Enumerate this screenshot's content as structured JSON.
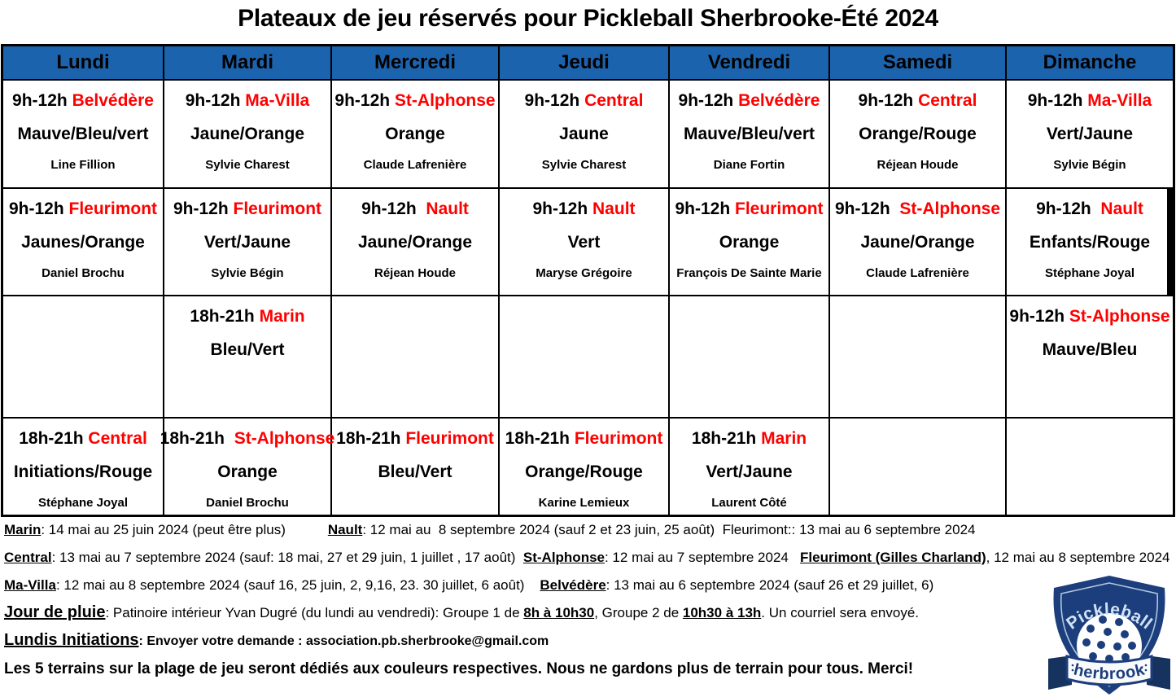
{
  "title": "Plateaux de jeu réservés pour Pickleball Sherbrooke-Été 2024",
  "colors": {
    "header_bg": "#1c63ae",
    "location_red": "#ff0000",
    "text_black": "#000000",
    "logo_navy": "#1d3e7c"
  },
  "days": [
    "Lundi",
    "Mardi",
    "Mercredi",
    "Jeudi",
    "Vendredi",
    "Samedi",
    "Dimanche"
  ],
  "schedule_rows": [
    [
      {
        "time": "9h-12h",
        "location": "Belvédère",
        "colors": "Mauve/Bleu/vert",
        "name": "Line Fillion"
      },
      {
        "time": "9h-12h",
        "location": "Ma-Villa",
        "colors": "Jaune/Orange",
        "name": "Sylvie Charest"
      },
      {
        "time": "9h-12h",
        "location": "St-Alphonse",
        "colors": "Orange",
        "name": "Claude Lafrenière"
      },
      {
        "time": "9h-12h",
        "location": "Central",
        "colors": "Jaune",
        "name": "Sylvie Charest"
      },
      {
        "time": "9h-12h",
        "location": "Belvédère",
        "colors": "Mauve/Bleu/vert",
        "name": "Diane Fortin"
      },
      {
        "time": "9h-12h",
        "location": "Central",
        "colors": "Orange/Rouge",
        "name": "Réjean Houde"
      },
      {
        "time": "9h-12h",
        "location": "Ma-Villa",
        "colors": "Vert/Jaune",
        "name": "Sylvie Bégin"
      }
    ],
    [
      {
        "time": "9h-12h",
        "location": "Fleurimont",
        "colors": "Jaunes/Orange",
        "name": "Daniel Brochu"
      },
      {
        "time": "9h-12h",
        "location": "Fleurimont",
        "colors": "Vert/Jaune",
        "name": "Sylvie Bégin"
      },
      {
        "time": "9h-12h ",
        "location": "Nault",
        "colors": "Jaune/Orange",
        "name": "Réjean Houde"
      },
      {
        "time": "9h-12h",
        "location": "Nault",
        "colors": "Vert",
        "name": "Maryse Grégoire"
      },
      {
        "time": "9h-12h",
        "location": "Fleurimont",
        "colors": "Orange",
        "name": "François De Sainte Marie"
      },
      {
        "time": "9h-12h ",
        "location": "St-Alphonse",
        "colors": "Jaune/Orange",
        "name": "Claude Lafrenière"
      },
      {
        "time": "9h-12h ",
        "location": "Nault",
        "colors": "Enfants/Rouge",
        "name": "Stéphane Joyal"
      }
    ],
    [
      null,
      {
        "time": "18h-21h",
        "location": "Marin",
        "colors": "Bleu/Vert",
        "name": ""
      },
      null,
      null,
      null,
      null,
      {
        "time": "9h-12h",
        "location": "St-Alphonse",
        "colors": "Mauve/Bleu",
        "name": ""
      }
    ],
    [
      {
        "time": "18h-21h",
        "location": "Central",
        "colors": "Initiations/Rouge",
        "name": "Stéphane Joyal"
      },
      {
        "time": "18h-21h ",
        "location": "St-Alphonse",
        "colors": "Orange",
        "name": "Daniel Brochu"
      },
      {
        "time": "18h-21h",
        "location": "Fleurimont",
        "colors": "Bleu/Vert",
        "name": ""
      },
      {
        "time": "18h-21h",
        "location": "Fleurimont",
        "colors": "Orange/Rouge",
        "name": "Karine Lemieux"
      },
      {
        "time": "18h-21h",
        "location": "Marin",
        "colors": "Vert/Jaune",
        "name": "Laurent Côté"
      },
      null,
      null
    ]
  ],
  "notes": [
    [
      {
        "t": "Marin",
        "b": 1,
        "u": 1
      },
      {
        "t": ": 14 mai au 25 juin 2024 (peut être plus)           "
      },
      {
        "t": "Nault",
        "b": 1,
        "u": 1
      },
      {
        "t": ": 12 mai au  8 septembre 2024 (sauf 2 et 23 juin, 25 août)  Fleurimont:: 13 mai au 6 septembre 2024"
      }
    ],
    [
      {
        "t": "Central",
        "b": 1,
        "u": 1
      },
      {
        "t": ": 13 mai au 7 septembre 2024 (sauf: 18 mai, 27 et 29 juin, 1 juillet , 17 août)  "
      },
      {
        "t": "St-Alphonse",
        "b": 1,
        "u": 1
      },
      {
        "t": ": 12 mai au 7 septembre 2024   "
      },
      {
        "t": "Fleurimont (Gilles Charland)",
        "b": 1,
        "u": 1
      },
      {
        "t": ", 12 mai au 8 septembre 2024"
      }
    ],
    [
      {
        "t": "Ma-Villa",
        "b": 1,
        "u": 1
      },
      {
        "t": ": 12 mai au 8 septembre 2024 (sauf 16, 25 juin, 2, 9,16, 23. 30 juillet, 6 août)    "
      },
      {
        "t": "Belvédère",
        "b": 1,
        "u": 1
      },
      {
        "t": ": 13 mai au 6 septembre 2024 (sauf 26 et 29 juillet, 6)"
      }
    ],
    [
      {
        "t": "Jour de pluie",
        "b": 1,
        "u": 1,
        "big": 1
      },
      {
        "t": ": Patinoire intérieur Yvan Dugré (du lundi au vendredi): Groupe 1 de "
      },
      {
        "t": "8h à 10h30",
        "b": 1,
        "u": 1
      },
      {
        "t": ", Groupe 2 de "
      },
      {
        "t": "10h30 à 13h",
        "b": 1,
        "u": 1
      },
      {
        "t": ". Un courriel sera envoyé."
      }
    ],
    [
      {
        "t": "Lundis Initiations",
        "b": 1,
        "u": 1,
        "big": 1
      },
      {
        "t": ": Envoyer votre demande : association.pb.sherbrooke@gmail.com",
        "b": 1,
        "small": 1
      }
    ],
    [
      {
        "t": "Les 5 terrains sur la plage de jeu seront dédiés aux couleurs respectives. Nous ne gardons plus de terrain pour tous. Merci!",
        "b": 1,
        "big2": 1
      }
    ]
  ],
  "logo": {
    "top_text": "Pickleball",
    "banner_text": "sherbrooke"
  }
}
